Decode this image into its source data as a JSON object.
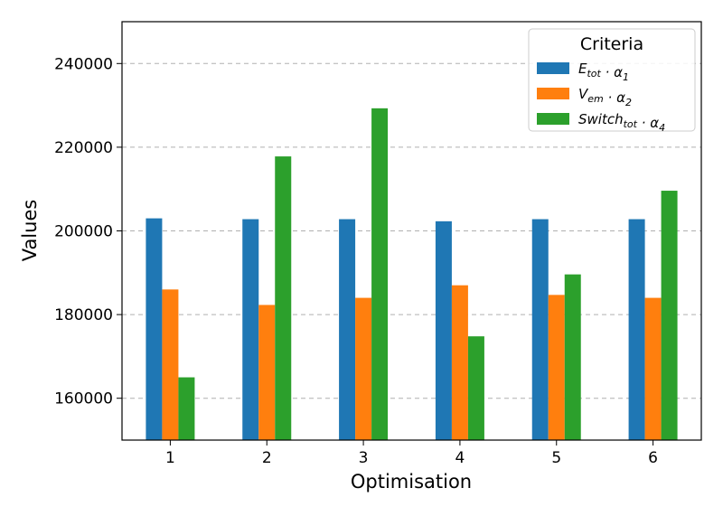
{
  "chart_data": {
    "type": "bar",
    "xlabel": "Optimisation",
    "ylabel": "Values",
    "categories": [
      "1",
      "2",
      "3",
      "4",
      "5",
      "6"
    ],
    "ylim": [
      150000,
      250000
    ],
    "yticks": [
      160000,
      180000,
      200000,
      220000,
      240000
    ],
    "grid": "y-dashed",
    "legend": {
      "title": "Criteria",
      "placement": "top-right"
    },
    "series": [
      {
        "name": "E_tot · α_1",
        "label_main": "E",
        "label_sub": "tot",
        "label_op": " · ",
        "label_alpha": "α",
        "label_alpha_sub": "1",
        "color": "#1f77b4",
        "values": [
          203000,
          202800,
          202800,
          202300,
          202800,
          202800
        ]
      },
      {
        "name": "V_em · α_2",
        "label_main": "V",
        "label_sub": "em",
        "label_op": " · ",
        "label_alpha": "α",
        "label_alpha_sub": "2",
        "color": "#ff7f0e",
        "values": [
          186000,
          182300,
          184000,
          187000,
          184700,
          184000
        ]
      },
      {
        "name": "Switch_tot · α_4",
        "label_main": "Switch",
        "label_sub": "tot",
        "label_op": " · ",
        "label_alpha": "α",
        "label_alpha_sub": "4",
        "color": "#2ca02c",
        "values": [
          165000,
          217800,
          229300,
          174800,
          189600,
          209600
        ]
      }
    ]
  }
}
